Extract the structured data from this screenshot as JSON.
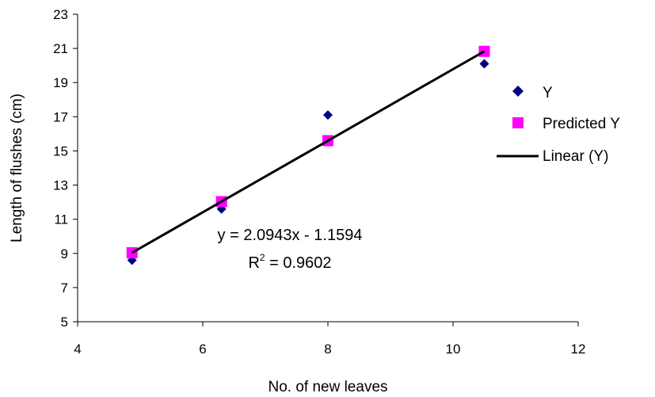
{
  "chart_data": {
    "type": "scatter",
    "title": "",
    "xlabel": "No. of new leaves",
    "ylabel": "Length of flushes (cm)",
    "xlim": [
      4,
      12
    ],
    "ylim": [
      5,
      23
    ],
    "x_ticks": [
      4,
      6,
      8,
      10,
      12
    ],
    "y_ticks": [
      5,
      7,
      9,
      11,
      13,
      15,
      17,
      19,
      21,
      23
    ],
    "grid": false,
    "legend_position": "right",
    "series": [
      {
        "name": "Y",
        "marker": "diamond",
        "color": "#000080",
        "points": [
          {
            "x": 4.87,
            "y": 8.6
          },
          {
            "x": 6.3,
            "y": 11.6
          },
          {
            "x": 8.0,
            "y": 17.1
          },
          {
            "x": 10.5,
            "y": 20.1
          }
        ]
      },
      {
        "name": "Predicted Y",
        "marker": "square",
        "color": "#ff00ff",
        "points": [
          {
            "x": 4.87,
            "y": 9.04
          },
          {
            "x": 6.3,
            "y": 12.03
          },
          {
            "x": 8.0,
            "y": 15.6
          },
          {
            "x": 10.5,
            "y": 20.83
          }
        ]
      }
    ],
    "trendline": {
      "name": "Linear (Y)",
      "color": "#000000",
      "slope": 2.0943,
      "intercept": -1.1594,
      "x_start": 4.87,
      "x_end": 10.5
    },
    "annotations": {
      "equation": "y = 2.0943x - 1.1594",
      "r2_prefix": "R",
      "r2_sup": "2",
      "r2_suffix": " = 0.9602"
    }
  }
}
